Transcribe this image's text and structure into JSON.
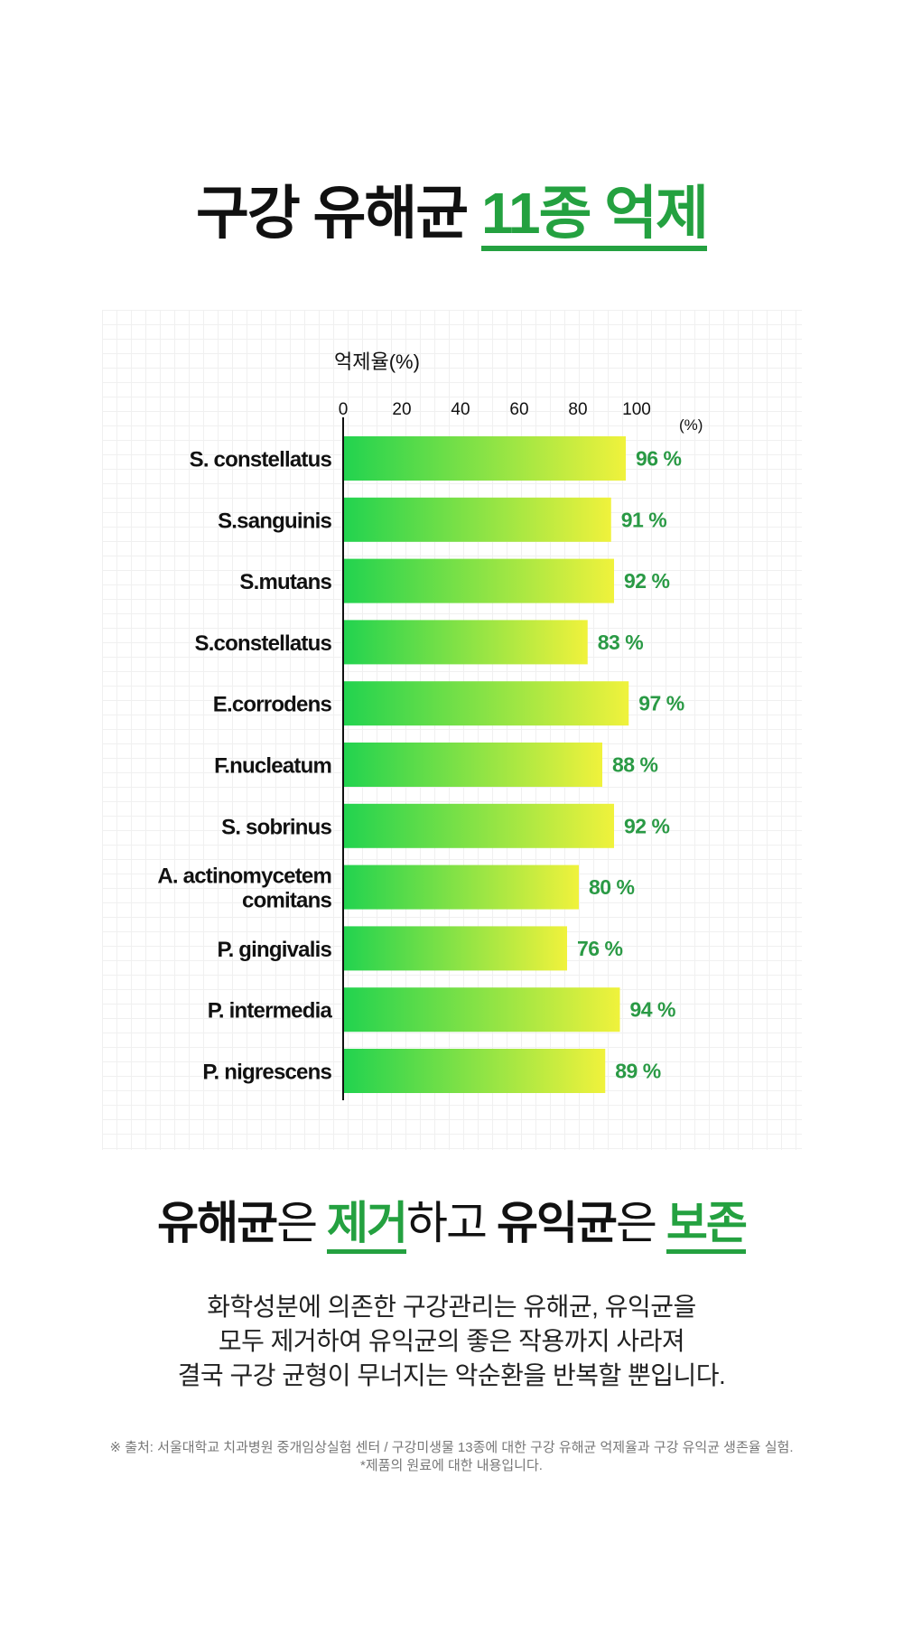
{
  "title": {
    "part1": "구강 유해균 ",
    "part2": "11종 억제"
  },
  "chart_data": {
    "type": "bar",
    "orientation": "horizontal",
    "axis_title": "억제율(%)",
    "unit_label": "(%)",
    "xlim": [
      0,
      100
    ],
    "ticks": [
      "0",
      "20",
      "40",
      "60",
      "80",
      "100"
    ],
    "grid": true,
    "categories": [
      [
        "S. constellatus"
      ],
      [
        "S.sanguinis"
      ],
      [
        "S.mutans"
      ],
      [
        "S.constellatus"
      ],
      [
        "E.corrodens"
      ],
      [
        "F.nucleatum"
      ],
      [
        "S. sobrinus"
      ],
      [
        "A. actinomycetem",
        "comitans"
      ],
      [
        "P. gingivalis"
      ],
      [
        "P. intermedia"
      ],
      [
        "P. nigrescens"
      ]
    ],
    "values": [
      96,
      91,
      92,
      83,
      97,
      88,
      92,
      80,
      76,
      94,
      89
    ],
    "value_labels": [
      "96 %",
      "91 %",
      "92 %",
      "83 %",
      "97 %",
      "88 %",
      "92 %",
      "80 %",
      "76 %",
      "94 %",
      "89 %"
    ],
    "colors": {
      "bar_start": "#22d34f",
      "bar_end": "#f0f23c",
      "label": "#2a9a45"
    }
  },
  "subtitle": {
    "w1": "유해균",
    "w2": "은 ",
    "w3": "제거",
    "w4": "하고 ",
    "w5": "유익균",
    "w6": "은 ",
    "w7": "보존"
  },
  "description": [
    "화학성분에 의존한 구강관리는 유해균, 유익균을",
    "모두 제거하여 유익균의 좋은 작용까지 사라져",
    "결국 구강 균형이 무너지는 악순환을 반복할 뿐입니다."
  ],
  "footnote": [
    "※ 출처: 서울대학교 치과병원 중개임상실험 센터 / 구강미생물 13종에 대한 구강 유해균 억제율과 구강 유익균 생존율 실험.",
    "*제품의 원료에 대한 내용입니다."
  ]
}
